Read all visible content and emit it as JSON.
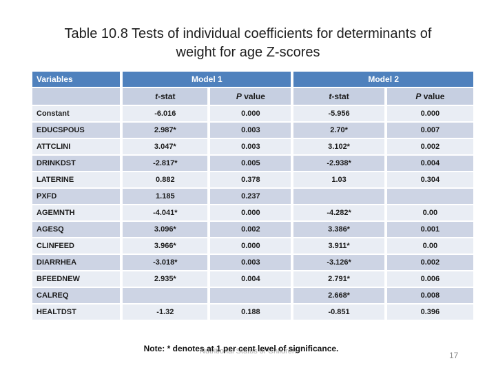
{
  "slide": {
    "title_line1": "Table 10.8 Tests of individual coefficients for determinants of",
    "title_line2": "weight for age Z-scores",
    "note": "Note: * denotes at 1 per cent level of significance.",
    "footer_watermark": "Nutritional Status of Children",
    "page_number": "17"
  },
  "table": {
    "header": {
      "variables_label": "Variables",
      "model1_label": "Model 1",
      "model2_label": "Model 2",
      "tstat_italic": "t",
      "tstat_rest": "-stat",
      "pvalue_italic": "P",
      "pvalue_rest": " value"
    },
    "rows": [
      {
        "variable": "Constant",
        "m1_tstat": "-6.016",
        "m1_p": "0.000",
        "m2_tstat": "-5.956",
        "m2_p": "0.000"
      },
      {
        "variable": "EDUCSPOUS",
        "m1_tstat": "2.987*",
        "m1_p": "0.003",
        "m2_tstat": "2.70*",
        "m2_p": "0.007"
      },
      {
        "variable": "ATTCLINI",
        "m1_tstat": "3.047*",
        "m1_p": "0.003",
        "m2_tstat": "3.102*",
        "m2_p": "0.002"
      },
      {
        "variable": "DRINKDST",
        "m1_tstat": "-2.817*",
        "m1_p": "0.005",
        "m2_tstat": "-2.938*",
        "m2_p": "0.004"
      },
      {
        "variable": "LATERINE",
        "m1_tstat": "0.882",
        "m1_p": "0.378",
        "m2_tstat": "1.03",
        "m2_p": "0.304"
      },
      {
        "variable": "PXFD",
        "m1_tstat": "1.185",
        "m1_p": "0.237",
        "m2_tstat": "",
        "m2_p": ""
      },
      {
        "variable": "AGEMNTH",
        "m1_tstat": "-4.041*",
        "m1_p": "0.000",
        "m2_tstat": "-4.282*",
        "m2_p": "0.00"
      },
      {
        "variable": "AGESQ",
        "m1_tstat": "3.096*",
        "m1_p": "0.002",
        "m2_tstat": "3.386*",
        "m2_p": "0.001"
      },
      {
        "variable": "CLINFEED",
        "m1_tstat": "3.966*",
        "m1_p": "0.000",
        "m2_tstat": "3.911*",
        "m2_p": "0.00"
      },
      {
        "variable": "DIARRHEA",
        "m1_tstat": "-3.018*",
        "m1_p": "0.003",
        "m2_tstat": "-3.126*",
        "m2_p": "0.002"
      },
      {
        "variable": "BFEEDNEW",
        "m1_tstat": "2.935*",
        "m1_p": "0.004",
        "m2_tstat": "2.791*",
        "m2_p": "0.006"
      },
      {
        "variable": "CALREQ",
        "m1_tstat": "",
        "m1_p": "",
        "m2_tstat": "2.668*",
        "m2_p": "0.008"
      },
      {
        "variable": "HEALTDST",
        "m1_tstat": "-1.32",
        "m1_p": "0.188",
        "m2_tstat": "-0.851",
        "m2_p": "0.396"
      }
    ]
  },
  "colors": {
    "header_bg": "#4F81BD",
    "subheader_bg": "#C6CFE1",
    "band_dark": "#CDD4E4",
    "band_light": "#E9EDF4",
    "title_color": "#1E1E1E",
    "note_color": "#111111",
    "watermark_color": "#ACACAC",
    "page_number_color": "#8A8A8A"
  }
}
